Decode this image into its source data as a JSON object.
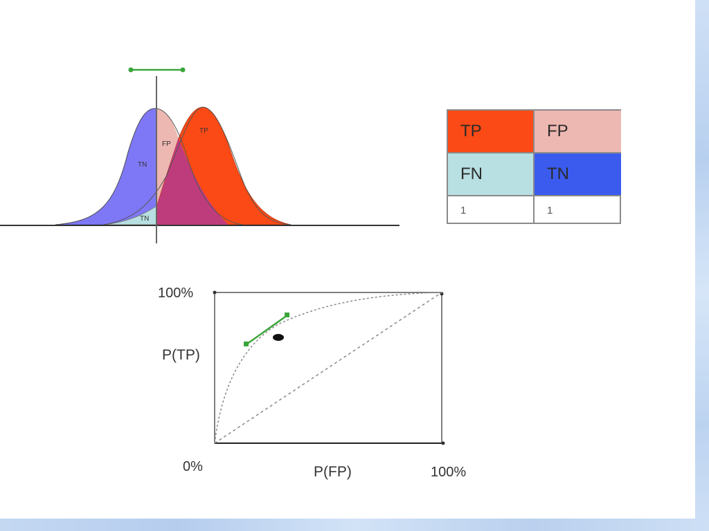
{
  "distributions": {
    "labels": {
      "tp_main": "TP",
      "fp": "FP",
      "tn_main": "TN",
      "tn_small": "TN"
    }
  },
  "matrix": {
    "cells": [
      {
        "label": "TP",
        "color": "#fb4a16"
      },
      {
        "label": "FP",
        "color": "#eeb8b2"
      },
      {
        "label": "FN",
        "color": "#b8dfe1"
      },
      {
        "label": "TN",
        "color": "#3b5bef"
      },
      {
        "label": "1",
        "color": "#ffffff"
      },
      {
        "label": "1",
        "color": "#ffffff"
      }
    ]
  },
  "roc": {
    "y_top_label": "100%",
    "y_axis_label": "P(TP)",
    "origin_label": "0%",
    "x_axis_label": "P(FP)",
    "x_right_label": "100%"
  },
  "colors": {
    "blue_curve": "#7f78f6",
    "red_curve": "#fb4a16",
    "overlap": "#bf3c7c",
    "fp_area": "#eeb8b2",
    "tn_area": "#b8dfe1",
    "handle": "#3aa63a"
  }
}
